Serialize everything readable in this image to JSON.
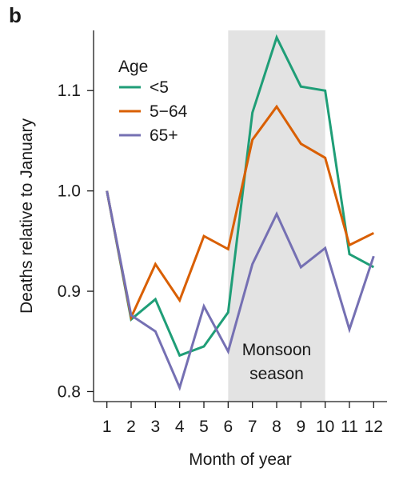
{
  "panel_label": "b",
  "chart_data": {
    "type": "line",
    "title": "",
    "xlabel": "Month of year",
    "ylabel": "Deaths relative to January",
    "x": [
      1,
      2,
      3,
      4,
      5,
      6,
      7,
      8,
      9,
      10,
      11,
      12
    ],
    "x_ticks": [
      "1",
      "2",
      "3",
      "4",
      "5",
      "6",
      "7",
      "8",
      "9",
      "10",
      "11",
      "12"
    ],
    "xlim": [
      0.45,
      12.55
    ],
    "ylim": [
      0.79,
      1.16
    ],
    "y_ticks": [
      0.8,
      0.9,
      1.0,
      1.1
    ],
    "y_tick_labels": [
      "0.8",
      "0.9",
      "1.0",
      "1.1"
    ],
    "grid": false,
    "legend": {
      "title": "Age",
      "placement": "top-left"
    },
    "series": [
      {
        "name": "<5",
        "color": "#1f9e77",
        "values": [
          1.0,
          0.872,
          0.892,
          0.836,
          0.845,
          0.879,
          1.078,
          1.153,
          1.104,
          1.1,
          0.937,
          0.924
        ]
      },
      {
        "name": "5−64",
        "color": "#d95f02",
        "values": [
          1.0,
          0.874,
          0.927,
          0.891,
          0.955,
          0.942,
          1.051,
          1.084,
          1.047,
          1.033,
          0.946,
          0.958
        ]
      },
      {
        "name": "65+",
        "color": "#7570b3",
        "values": [
          1.0,
          0.876,
          0.86,
          0.804,
          0.885,
          0.84,
          0.927,
          0.977,
          0.924,
          0.943,
          0.862,
          0.935
        ]
      }
    ],
    "shaded_region": {
      "x_start": 6,
      "x_end": 10,
      "label_line1": "Monsoon",
      "label_line2": "season",
      "color": "#e3e3e3"
    }
  }
}
